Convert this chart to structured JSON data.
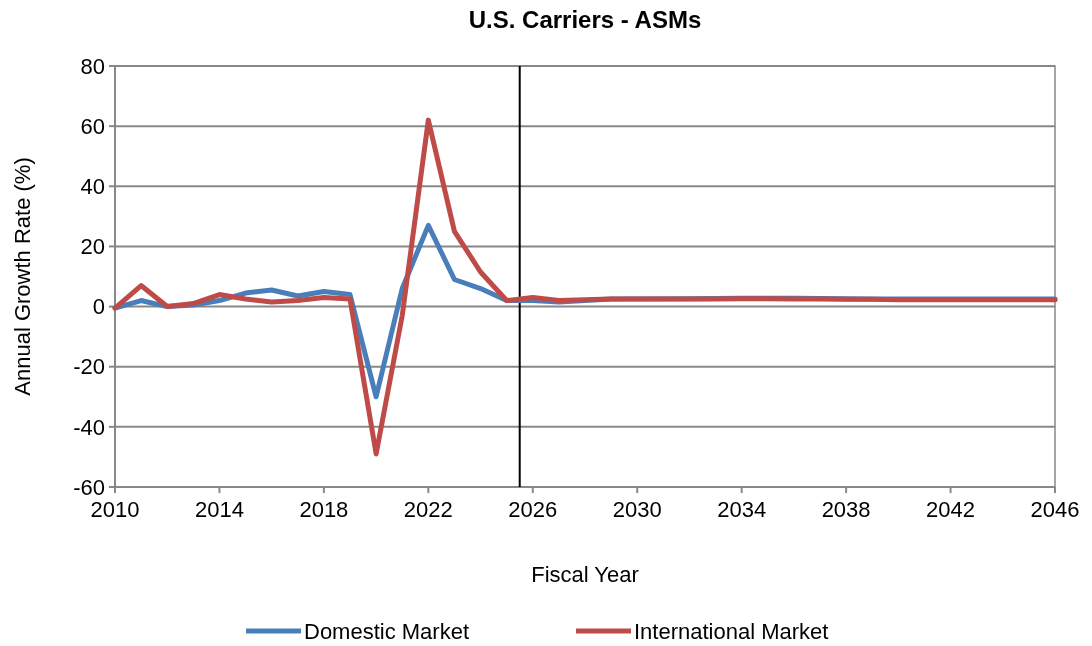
{
  "chart_data": {
    "type": "line",
    "title": "U.S. Carriers - ASMs",
    "xlabel": "Fiscal Year",
    "ylabel": "Annual Growth Rate (%)",
    "x": [
      2010,
      2011,
      2012,
      2013,
      2014,
      2015,
      2016,
      2017,
      2018,
      2019,
      2020,
      2021,
      2022,
      2023,
      2024,
      2025,
      2026,
      2027,
      2028,
      2029,
      2030,
      2031,
      2032,
      2033,
      2034,
      2035,
      2036,
      2037,
      2038,
      2039,
      2040,
      2041,
      2042,
      2043,
      2044,
      2045,
      2046
    ],
    "series": [
      {
        "name": "Domestic Market",
        "color": "#4a7ebb",
        "values": [
          -0.5,
          2,
          0,
          0.5,
          2,
          4.5,
          5.5,
          3.5,
          5,
          4,
          -30,
          6,
          27,
          9,
          6,
          2,
          2,
          1.5,
          2,
          2.5,
          null,
          null,
          2.6,
          2.7,
          2.8,
          2.8,
          2.8,
          2.7,
          2.6,
          2.5,
          2.5,
          2.5,
          2.5,
          2.5,
          2.5,
          2.5,
          2.5
        ]
      },
      {
        "name": "International Market",
        "color": "#be4b48",
        "values": [
          -0.5,
          7,
          0,
          1,
          4,
          2.5,
          1.5,
          2,
          3,
          2.5,
          -49,
          -3,
          62,
          25,
          11.5,
          2,
          3,
          2,
          2.3,
          2.5,
          2.5,
          2.5,
          2.5,
          2.5,
          2.6,
          2.6,
          2.5,
          2.5,
          2.4,
          2.4,
          2.3,
          2.3,
          2.3,
          2.3,
          2.3,
          2.3,
          2.3
        ]
      }
    ],
    "xlim": [
      2010,
      2046
    ],
    "xticks": [
      2010,
      2014,
      2018,
      2022,
      2026,
      2030,
      2034,
      2038,
      2042,
      2046
    ],
    "ylim": [
      -60,
      80
    ],
    "yticks": [
      -60,
      -40,
      -20,
      0,
      20,
      40,
      60,
      80
    ],
    "grid": "y",
    "legend": "bottom",
    "marker": "none",
    "line_style": "solid",
    "ref_lines": [
      {
        "axis": "x",
        "value": 2025.5,
        "color": "#000000"
      }
    ]
  }
}
